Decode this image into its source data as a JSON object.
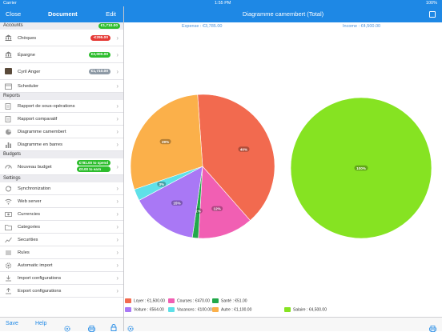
{
  "status": {
    "carrier": "Carrier",
    "time": "1:55 PM",
    "battery": "100%"
  },
  "sidebar_nav": {
    "close": "Close",
    "title": "Document",
    "edit": "Edit"
  },
  "main_nav": {
    "title": "Diagramme camembert (Total)"
  },
  "accounts": {
    "header": "Accounts",
    "total": "€1,710.00",
    "items": [
      {
        "label": "Chèques",
        "amount": "-€295.00",
        "color": "red"
      },
      {
        "label": "Épargne",
        "amount": "€2,000.00",
        "color": "green"
      },
      {
        "label": "Cyril Anger",
        "amount": "€1,710.00",
        "color": "grey"
      },
      {
        "label": "Scheduler",
        "amount": ""
      }
    ]
  },
  "reports": {
    "header": "Reports",
    "items": [
      {
        "label": "Rapport de sous-opérations"
      },
      {
        "label": "Rapport comparatif"
      },
      {
        "label": "Diagramme camembert"
      },
      {
        "label": "Diagramme en barres"
      }
    ]
  },
  "budgets": {
    "header": "Budgets",
    "item": {
      "label": "Nouveau budget",
      "to_spend": "€781.00 to spend",
      "to_earn": "€0.00 to earn"
    }
  },
  "settings": {
    "header": "Settings",
    "items": [
      {
        "label": "Synchronization",
        "icon": "sync-icon"
      },
      {
        "label": "Web server",
        "icon": "wifi-icon"
      },
      {
        "label": "Currencies",
        "icon": "currency-icon"
      },
      {
        "label": "Categories",
        "icon": "folder-icon"
      },
      {
        "label": "Securities",
        "icon": "chart-icon"
      },
      {
        "label": "Rules",
        "icon": "rules-icon"
      },
      {
        "label": "Automatic import",
        "icon": "gear-icon"
      },
      {
        "label": "Import configurations",
        "icon": "import-icon"
      },
      {
        "label": "Export configurations",
        "icon": "export-icon"
      }
    ]
  },
  "toolbar": {
    "save": "Save",
    "help": "Help"
  },
  "chart_data": {
    "type": "pie",
    "expense_title": "Expense : €3,785.00",
    "income_title": "Income : €4,500.00",
    "expense": [
      {
        "name": "Loyer",
        "amount": "€1,500.00",
        "label": "40%",
        "value": 1500,
        "color": "#f26a4f"
      },
      {
        "name": "Courses",
        "amount": "€470.00",
        "label": "12%",
        "value": 470,
        "color": "#f15fb3"
      },
      {
        "name": "Santé",
        "amount": "€51.00",
        "label": "1%",
        "value": 51,
        "color": "#22a84a"
      },
      {
        "name": "Voiture",
        "amount": "€564.00",
        "label": "15%",
        "value": 564,
        "color": "#a978f5"
      },
      {
        "name": "Vacances",
        "amount": "€100.00",
        "label": "3%",
        "value": 100,
        "color": "#5fe0e8"
      },
      {
        "name": "Autre",
        "amount": "€1,100.00",
        "label": "29%",
        "value": 1100,
        "color": "#fbb04a"
      }
    ],
    "income": [
      {
        "name": "Salaire",
        "amount": "€4,500.00",
        "label": "100%",
        "value": 4500,
        "color": "#86e322"
      }
    ]
  }
}
